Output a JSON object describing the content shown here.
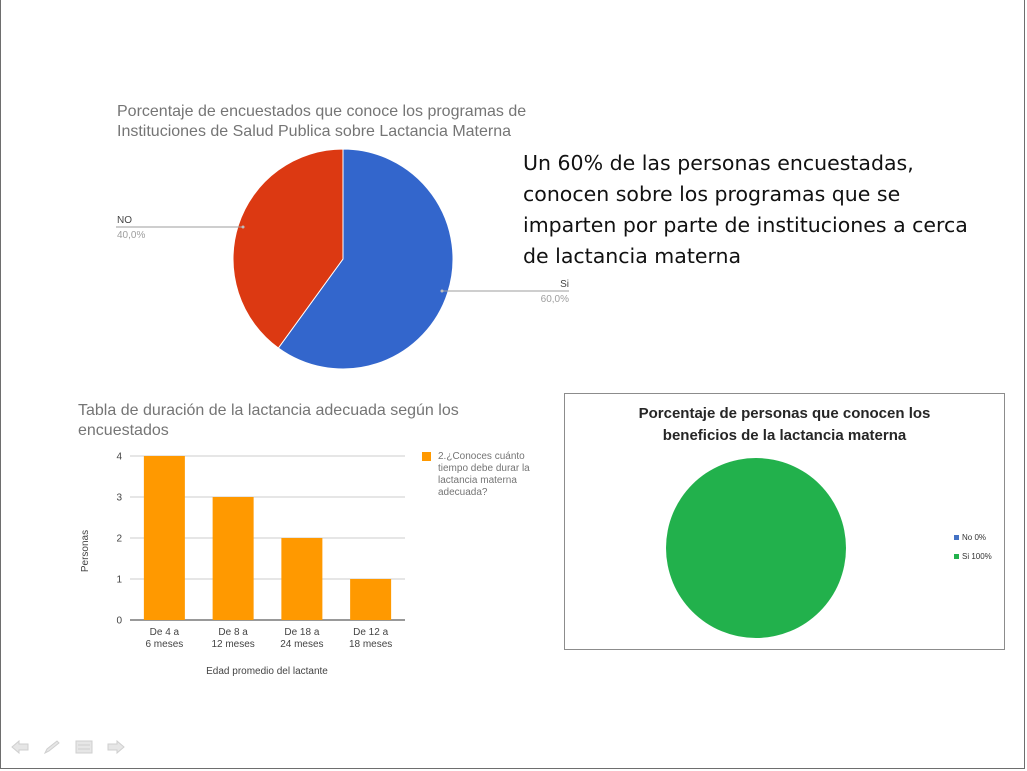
{
  "pie_programs": {
    "title": "Porcentaje de encuestados que conoce los programas de\nInstituciones de Salud Publica sobre Lactancia Materna",
    "no_label": "NO",
    "no_value": "40,0%",
    "si_label": "Si",
    "si_value": "60,0%"
  },
  "summary": {
    "text": "Un 60% de las personas encuestadas, conocen sobre los programas que se imparten por parte de instituciones a cerca de lactancia materna"
  },
  "bar_duration": {
    "title": "Tabla de duración de la lactancia adecuada según los encuestados",
    "legend": "2.¿Conoces cuánto tiempo debe durar la lactancia materna adecuada?",
    "xlabel": "Edad promedio del lactante",
    "ylabel": "Personas"
  },
  "pie_benefits": {
    "title": "Porcentaje de personas que conocen los\nbeneficios de la lactancia materna",
    "legend_no": "No 0%",
    "legend_si": "Si 100%"
  },
  "colors": {
    "si_blue": "#3366cc",
    "no_red": "#dc3912",
    "bar_orange": "#ff9900",
    "green": "#22b14c",
    "legend_blue": "#4472c4"
  },
  "nav": {
    "icons": [
      "arrow-left-icon",
      "pen-icon",
      "menu-icon",
      "arrow-right-icon"
    ]
  },
  "chart_data": [
    {
      "type": "pie",
      "title": "Porcentaje de encuestados que conoce los programas de Instituciones de Salud Publica sobre Lactancia Materna",
      "labels": [
        "Si",
        "NO"
      ],
      "values": [
        60.0,
        40.0
      ],
      "colors": [
        "#3366cc",
        "#dc3912"
      ]
    },
    {
      "type": "bar",
      "title": "Tabla de duración de la lactancia adecuada según los encuestados",
      "categories": [
        "De 4 a 6 meses",
        "De 8 a 12 meses",
        "De 18 a 24 meses",
        "De 12 a 18 meses"
      ],
      "series": [
        {
          "name": "2.¿Conoces cuánto tiempo debe durar la lactancia materna adecuada?",
          "values": [
            4,
            3,
            2,
            1
          ]
        }
      ],
      "xlabel": "Edad promedio del lactante",
      "ylabel": "Personas",
      "ylim": [
        0,
        4
      ],
      "yticks": [
        0,
        1,
        2,
        3,
        4
      ],
      "grid": true,
      "legend": "right"
    },
    {
      "type": "pie",
      "title": "Porcentaje de personas que conocen los beneficios de la lactancia materna",
      "labels": [
        "No 0%",
        "Si 100%"
      ],
      "values": [
        0,
        100
      ],
      "colors": [
        "#4472c4",
        "#22b14c"
      ],
      "legend": "right"
    }
  ]
}
